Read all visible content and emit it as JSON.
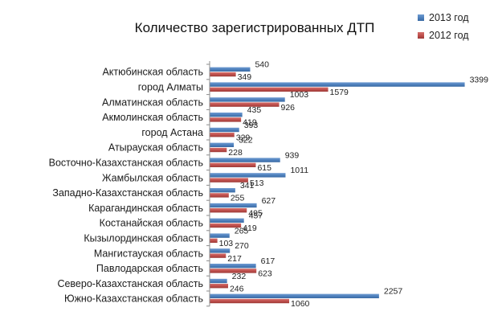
{
  "chart_data": {
    "type": "bar",
    "orientation": "horizontal",
    "title": "Количество зарегистрированных ДТП",
    "xlabel": "",
    "ylabel": "",
    "xlim": [
      0,
      3500
    ],
    "grid": false,
    "legend_position": "top-right",
    "categories": [
      "Актюбинская область",
      "город Алматы",
      "Алматинская область",
      "Акмолинская область",
      "город Астана",
      "Атырауская область",
      "Восточно-Казахстанская область",
      "Жамбылская область",
      "Западно-Казахстанская область",
      "Карагандинская область",
      "Костанайская область",
      "Кызылординская область",
      "Мангистауская область",
      "Павлодарская область",
      "Северо-Казахстанская область",
      "Южно-Казахстанская область"
    ],
    "series": [
      {
        "name": "2013 год",
        "color": "#4f81bd",
        "values": [
          540,
          3399,
          1003,
          435,
          393,
          322,
          939,
          1011,
          341,
          627,
          457,
          265,
          270,
          617,
          232,
          2257
        ]
      },
      {
        "name": "2012 год",
        "color": "#c0504d",
        "values": [
          349,
          1579,
          926,
          419,
          329,
          228,
          615,
          513,
          255,
          495,
          419,
          103,
          217,
          623,
          246,
          1060
        ]
      }
    ]
  }
}
